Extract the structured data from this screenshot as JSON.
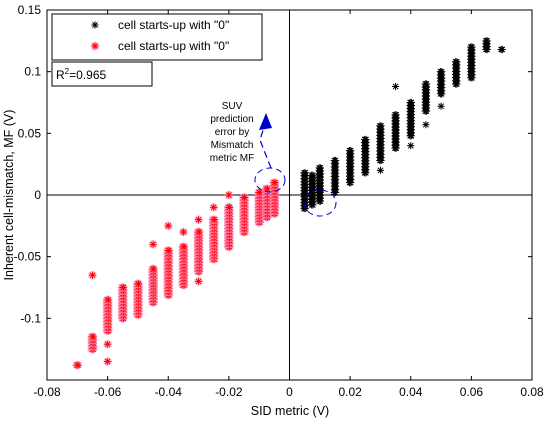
{
  "chart_data": {
    "type": "scatter",
    "xlabel": "SID metric (V)",
    "ylabel": "Inherent cell-mismatch, MF (V)",
    "xlim": [
      -0.08,
      0.08
    ],
    "ylim": [
      -0.15,
      0.15
    ],
    "x_ticks": [
      -0.08,
      -0.06,
      -0.04,
      -0.02,
      0,
      0.02,
      0.04,
      0.06,
      0.08
    ],
    "x_tick_labels": [
      "-0.08",
      "-0.06",
      "-0.04",
      "-0.02",
      "0",
      "0.02",
      "0.04",
      "0.06",
      "0.08"
    ],
    "y_ticks": [
      0.15,
      0.1,
      0.05,
      0,
      -0.05,
      -0.1
    ],
    "y_tick_labels": [
      "0.15",
      "0.1",
      "0.05",
      "0",
      "-0.05",
      "-0.1"
    ],
    "grid": false,
    "legend_position": "top-left",
    "series": [
      {
        "name": "cell starts-up with \"0\"",
        "color": "#000000",
        "marker": "asterisk",
        "clusters": [
          {
            "x": 0.005,
            "y_min": -0.011,
            "y_max": 0.018
          },
          {
            "x": 0.0075,
            "y_min": -0.008,
            "y_max": 0.016
          },
          {
            "x": 0.01,
            "y_min": -0.005,
            "y_max": 0.022
          },
          {
            "x": 0.015,
            "y_min": 0.002,
            "y_max": 0.028
          },
          {
            "x": 0.02,
            "y_min": 0.01,
            "y_max": 0.036
          },
          {
            "x": 0.025,
            "y_min": 0.018,
            "y_max": 0.045
          },
          {
            "x": 0.03,
            "y_min": 0.028,
            "y_max": 0.056
          },
          {
            "x": 0.035,
            "y_min": 0.038,
            "y_max": 0.065
          },
          {
            "x": 0.04,
            "y_min": 0.048,
            "y_max": 0.075
          },
          {
            "x": 0.045,
            "y_min": 0.068,
            "y_max": 0.09
          },
          {
            "x": 0.05,
            "y_min": 0.082,
            "y_max": 0.1
          },
          {
            "x": 0.055,
            "y_min": 0.09,
            "y_max": 0.108
          },
          {
            "x": 0.06,
            "y_min": 0.095,
            "y_max": 0.12
          },
          {
            "x": 0.065,
            "y_min": 0.118,
            "y_max": 0.125
          },
          {
            "x": 0.07,
            "y_min": 0.118,
            "y_max": 0.118
          }
        ],
        "outliers": [
          {
            "x": 0.035,
            "y": 0.088
          },
          {
            "x": 0.04,
            "y": 0.04
          },
          {
            "x": 0.045,
            "y": 0.057
          },
          {
            "x": 0.05,
            "y": 0.072
          },
          {
            "x": 0.03,
            "y": 0.02
          }
        ]
      },
      {
        "name": "cell starts-up with \"0\"",
        "color": "#ff0000",
        "halo_color": "#ff99cc",
        "marker": "asterisk",
        "clusters": [
          {
            "x": -0.07,
            "y_min": -0.138,
            "y_max": -0.138
          },
          {
            "x": -0.065,
            "y_min": -0.125,
            "y_max": -0.115
          },
          {
            "x": -0.06,
            "y_min": -0.11,
            "y_max": -0.085
          },
          {
            "x": -0.055,
            "y_min": -0.1,
            "y_max": -0.075
          },
          {
            "x": -0.05,
            "y_min": -0.097,
            "y_max": -0.072
          },
          {
            "x": -0.045,
            "y_min": -0.087,
            "y_max": -0.06
          },
          {
            "x": -0.04,
            "y_min": -0.081,
            "y_max": -0.045
          },
          {
            "x": -0.035,
            "y_min": -0.073,
            "y_max": -0.042
          },
          {
            "x": -0.03,
            "y_min": -0.062,
            "y_max": -0.03
          },
          {
            "x": -0.025,
            "y_min": -0.052,
            "y_max": -0.02
          },
          {
            "x": -0.02,
            "y_min": -0.042,
            "y_max": -0.01
          },
          {
            "x": -0.015,
            "y_min": -0.03,
            "y_max": -0.002
          },
          {
            "x": -0.01,
            "y_min": -0.022,
            "y_max": 0.002
          },
          {
            "x": -0.0075,
            "y_min": -0.018,
            "y_max": 0.005
          },
          {
            "x": -0.005,
            "y_min": -0.015,
            "y_max": 0.01
          }
        ],
        "outliers": [
          {
            "x": -0.06,
            "y": -0.135
          },
          {
            "x": -0.06,
            "y": -0.121
          },
          {
            "x": -0.065,
            "y": -0.065
          },
          {
            "x": -0.04,
            "y": -0.025
          },
          {
            "x": -0.045,
            "y": -0.04
          },
          {
            "x": -0.035,
            "y": -0.03
          },
          {
            "x": -0.03,
            "y": -0.02
          },
          {
            "x": -0.025,
            "y": -0.01
          },
          {
            "x": -0.02,
            "y": 0
          },
          {
            "x": -0.03,
            "y": -0.07
          }
        ]
      }
    ],
    "annotations": {
      "r_squared": {
        "prefix": "R",
        "superscript": "2",
        "value": "=0.965"
      },
      "callout_lines": [
        "SUV",
        "prediction",
        "error by",
        "Mismatch",
        "metric MF"
      ],
      "callout_arrow_color": "#0000cc"
    }
  }
}
